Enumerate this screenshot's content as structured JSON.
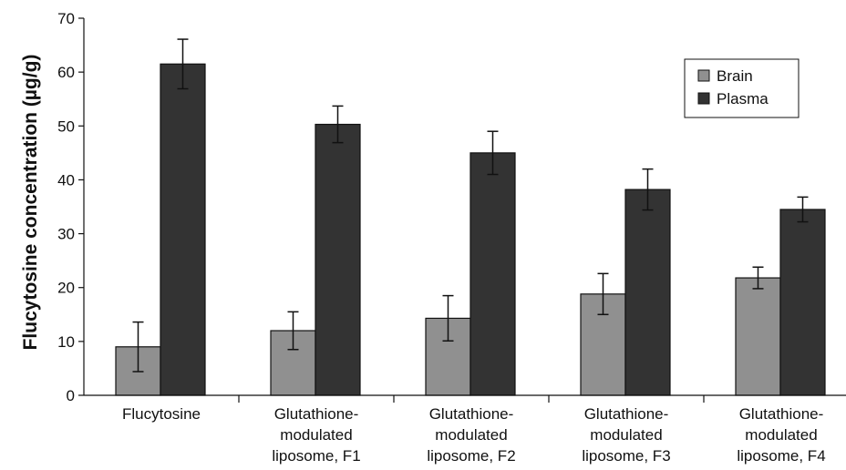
{
  "chart_data": {
    "type": "bar",
    "title": "",
    "xlabel": "",
    "ylabel": "Flucytosine concentration (µg/g)",
    "ylim": [
      0,
      70
    ],
    "yticks": [
      0,
      10,
      20,
      30,
      40,
      50,
      60,
      70
    ],
    "grid": false,
    "legend_position": "top-right",
    "categories": [
      [
        "Flucytosine"
      ],
      [
        "Glutathione-",
        "modulated",
        "liposome, F1"
      ],
      [
        "Glutathione-",
        "modulated",
        "liposome, F2"
      ],
      [
        "Glutathione-",
        "modulated",
        "liposome, F3"
      ],
      [
        "Glutathione-",
        "modulated",
        "liposome, F4"
      ]
    ],
    "series": [
      {
        "name": "Brain",
        "color": "#909090",
        "values": [
          9.0,
          12.0,
          14.3,
          18.8,
          21.8
        ],
        "errors": [
          4.6,
          3.5,
          4.2,
          3.8,
          2.0
        ]
      },
      {
        "name": "Plasma",
        "color": "#333333",
        "values": [
          61.5,
          50.3,
          45.0,
          38.2,
          34.5
        ],
        "errors": [
          4.6,
          3.4,
          4.0,
          3.8,
          2.3
        ]
      }
    ]
  }
}
